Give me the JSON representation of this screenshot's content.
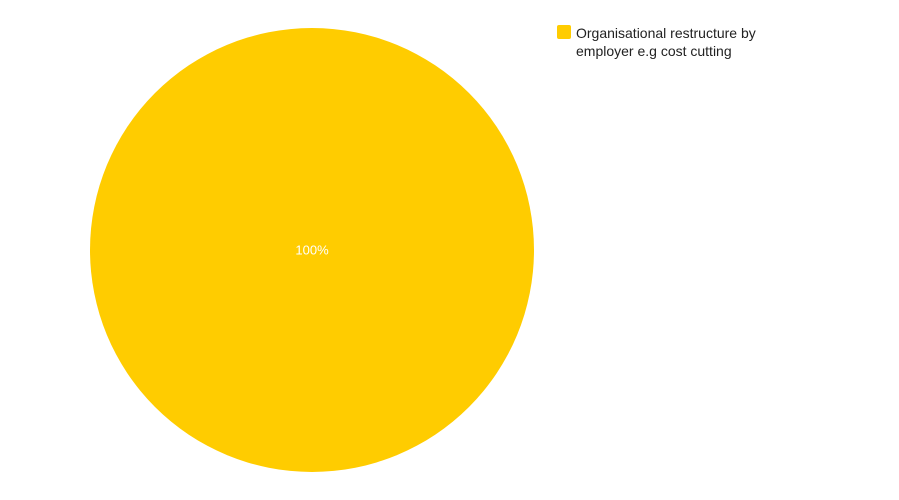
{
  "chart_data": {
    "type": "pie",
    "title": "",
    "slices": [
      {
        "label": "Organisational restructure by employer e.g cost cutting",
        "value": 100,
        "percent_label": "100%",
        "color": "#FFCC00"
      }
    ],
    "legend_position": "top-right",
    "label_color": "#FFFFFF"
  }
}
